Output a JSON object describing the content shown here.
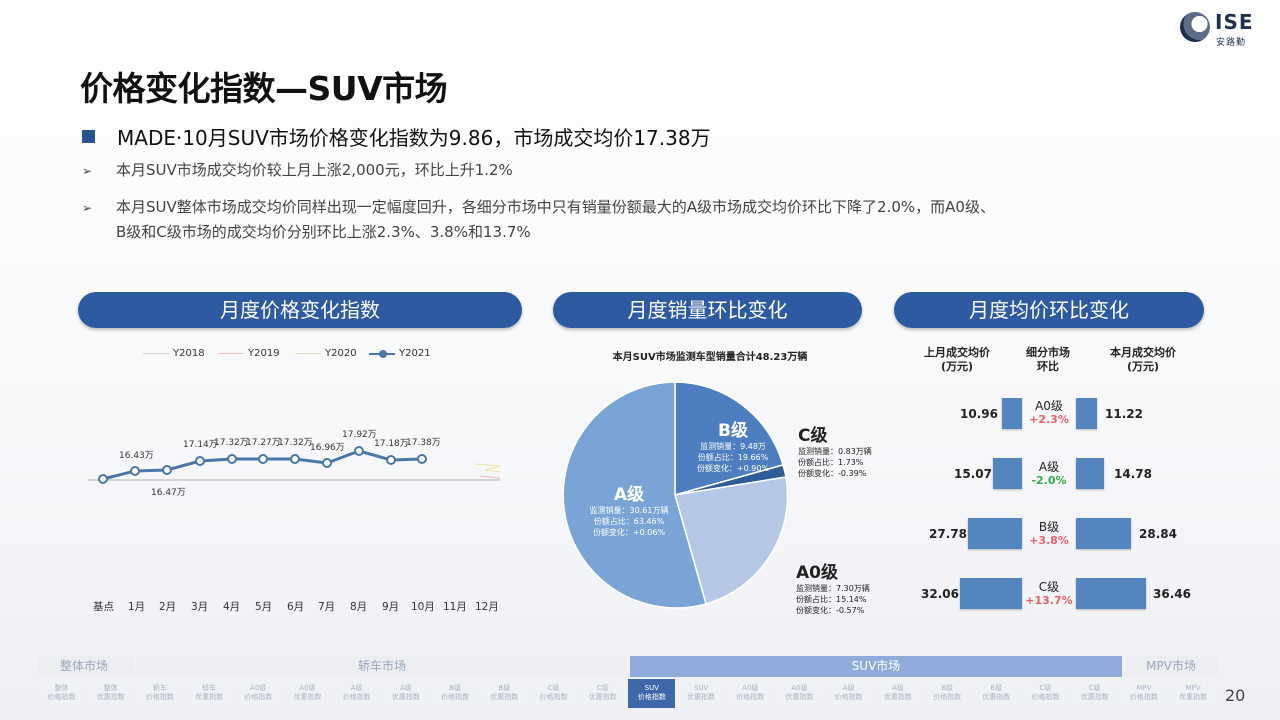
{
  "logo": {
    "main": "ISE",
    "sub": "安路勤"
  },
  "title": "价格变化指数—SUV市场",
  "main_point": "MADE·10月SUV市场价格变化指数为9.86，市场成交均价17.38万",
  "sub_points": [
    "本月SUV市场成交均价较上月上涨2,000元，环比上升1.2%",
    "本月SUV整体市场成交均价同样出现一定幅度回升，各细分市场中只有销量份额最大的A级市场成交均价环比下降了2.0%，而A0级、",
    "B级和C级市场的成交均价分别环比上涨2.3%、3.8%和13.7%"
  ],
  "arrow_glyph": "➢",
  "sections": [
    "月度价格变化指数",
    "月度销量环比变化",
    "月度均价环比变化"
  ],
  "line_chart": {
    "legend": [
      "Y2018",
      "Y2019",
      "Y2020",
      "Y2021"
    ],
    "months": [
      "基点",
      "1月",
      "2月",
      "3月",
      "4月",
      "5月",
      "6月",
      "7月",
      "8月",
      "9月",
      "10月",
      "11月",
      "12月"
    ],
    "labels": [
      "16.43万",
      "16.47万",
      "17.14万",
      "17.32万",
      "17.27万",
      "17.32万",
      "16.96万",
      "17.92万",
      "17.18万",
      "17.38万"
    ],
    "color": "#4a77a8"
  },
  "pie": {
    "caption": "本月SUV市场监测车型销量合计48.23万辆",
    "segments": [
      {
        "name": "A级",
        "lines": [
          "监测销量：30.61万辆",
          "份额占比：63.46%",
          "份额变化：+0.06%"
        ]
      },
      {
        "name": "B级",
        "lines": [
          "监测销量：9.48万",
          "份额占比：19.66%",
          "份额变化：+0.90%"
        ]
      },
      {
        "name": "C级",
        "lines": [
          "监测销量：0.83万辆",
          "份额占比：1.73%",
          "份额变化：-0.39%"
        ]
      },
      {
        "name": "A0级",
        "lines": [
          "监测销量：7.30万辆",
          "份额占比：15.14%",
          "份额变化：-0.57%"
        ]
      }
    ]
  },
  "price": {
    "headers": [
      "上月成交均价\n(万元)",
      "细分市场\n环比",
      "本月成交均价\n(万元)"
    ],
    "rows": [
      {
        "prev": "10.96",
        "name": "A0级",
        "change": "+2.3%",
        "curr": "11.22",
        "change_color": "#e8606a"
      },
      {
        "prev": "15.07",
        "name": "A级",
        "change": "-2.0%",
        "curr": "14.78",
        "change_color": "#3aa847"
      },
      {
        "prev": "27.78",
        "name": "B级",
        "change": "+3.8%",
        "curr": "28.84",
        "change_color": "#e8606a"
      },
      {
        "prev": "32.06",
        "name": "C级",
        "change": "+13.7%",
        "curr": "36.46",
        "change_color": "#e8606a"
      }
    ]
  },
  "nav": {
    "groups": [
      "整体市场",
      "轿车市场",
      "SUV市场",
      "MPV市场"
    ],
    "cells": [
      "整体\n价格指数",
      "整体\n优惠指数",
      "轿车\n价格指数",
      "轿车\n优惠指数",
      "A0级\n价格指数",
      "A0级\n优惠指数",
      "A级\n价格指数",
      "A级\n优惠指数",
      "B级\n价格指数",
      "B级\n优惠指数",
      "C级\n价格指数",
      "C级\n优惠指数",
      "SUV\n价格指数",
      "SUV\n优惠指数",
      "A0级\n价格指数",
      "A0级\n优惠指数",
      "A级\n价格指数",
      "A级\n优惠指数",
      "B级\n价格指数",
      "B级\n优惠指数",
      "C级\n价格指数",
      "C级\n优惠指数",
      "MPV\n价格指数",
      "MPV\n优惠指数"
    ]
  },
  "page_number": "20"
}
